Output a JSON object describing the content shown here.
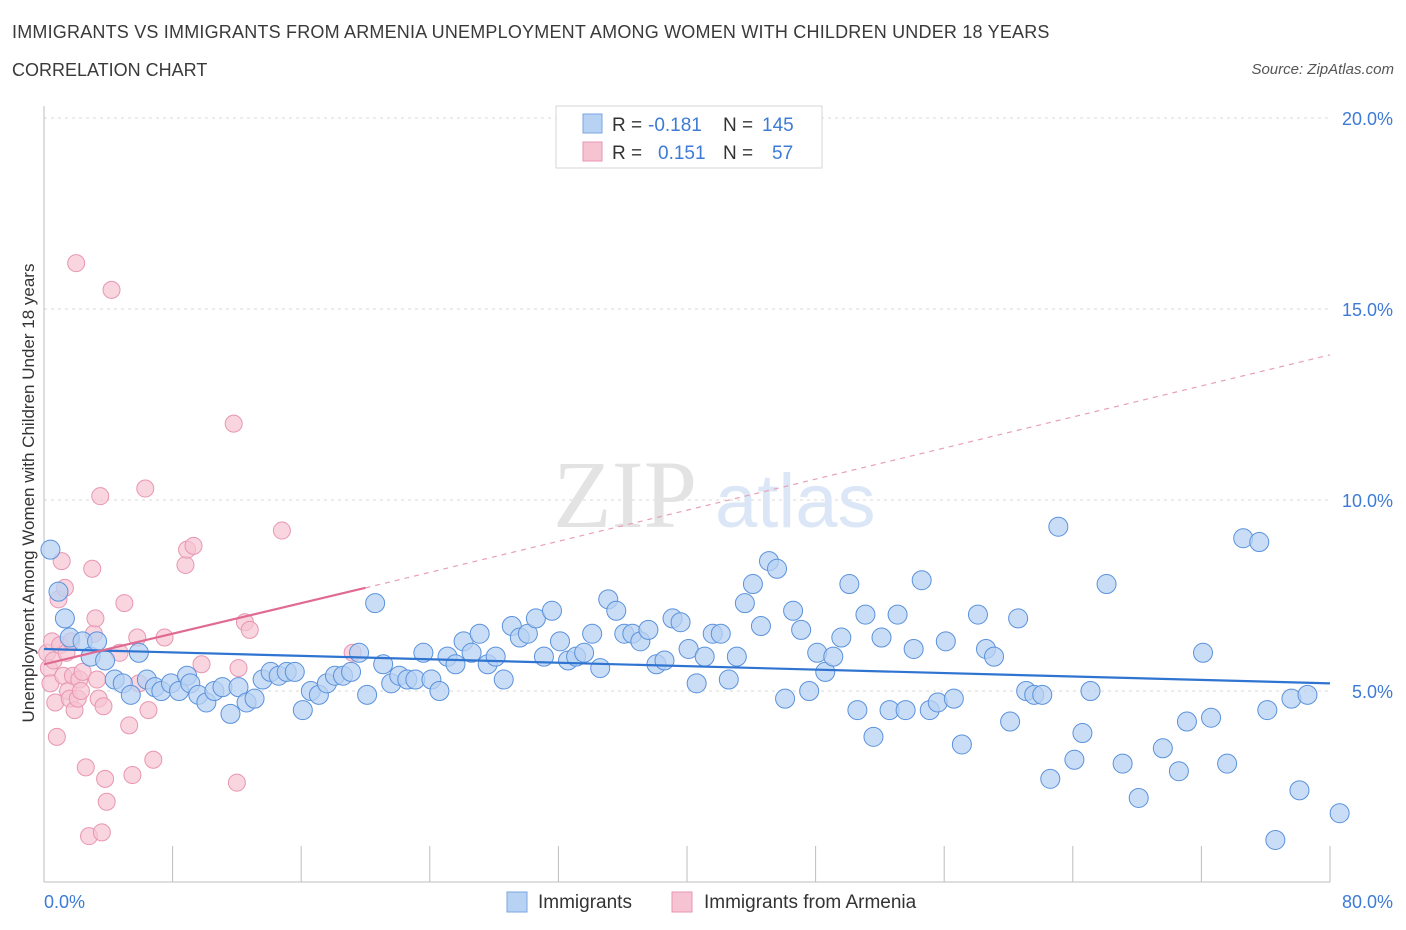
{
  "title": "IMMIGRANTS VS IMMIGRANTS FROM ARMENIA UNEMPLOYMENT AMONG WOMEN WITH CHILDREN UNDER 18 YEARS",
  "subtitle": "CORRELATION CHART",
  "source": "Source: ZipAtlas.com",
  "watermark": {
    "zip": "ZIP",
    "atlas": "atlas"
  },
  "colors": {
    "blue": "#4a86d8",
    "blue_fill": "#b8d2f3",
    "pink": "#e06a92",
    "pink_fill": "#f6c3d3",
    "axis_text": "#3d7bd6",
    "grid": "#d8d8d8"
  },
  "legend_box": {
    "rows": [
      {
        "r_label": "R =",
        "r_value": "-0.181",
        "n_label": "N =",
        "n_value": "145"
      },
      {
        "r_label": "R =",
        "r_value": "0.151",
        "n_label": "N =",
        "n_value": "57"
      }
    ]
  },
  "chart_data": {
    "type": "scatter",
    "ylabel": "Unemployment Among Women with Children Under 18 years",
    "xlim": [
      0,
      80
    ],
    "ylim": [
      0,
      20
    ],
    "x_tick_labels": [
      "0.0%",
      "80.0%"
    ],
    "y_ticks": [
      5,
      10,
      15,
      20
    ],
    "y_tick_labels": [
      "5.0%",
      "10.0%",
      "15.0%",
      "20.0%"
    ],
    "grid": true,
    "legend_placement": "bottom-center",
    "series": [
      {
        "name": "Immigrants",
        "color": "#4a86d8",
        "trend": {
          "x": [
            0,
            80
          ],
          "y": [
            6.1,
            5.2
          ]
        },
        "points": [
          [
            0.4,
            8.7
          ],
          [
            0.9,
            7.6
          ],
          [
            1.3,
            6.9
          ],
          [
            1.6,
            6.4
          ],
          [
            2.4,
            6.3
          ],
          [
            2.9,
            5.9
          ],
          [
            3.3,
            6.3
          ],
          [
            3.8,
            5.8
          ],
          [
            4.4,
            5.3
          ],
          [
            4.9,
            5.2
          ],
          [
            5.4,
            4.9
          ],
          [
            5.9,
            6.0
          ],
          [
            6.4,
            5.3
          ],
          [
            6.9,
            5.1
          ],
          [
            7.3,
            5.0
          ],
          [
            7.9,
            5.2
          ],
          [
            8.4,
            5.0
          ],
          [
            8.9,
            5.4
          ],
          [
            9.1,
            5.2
          ],
          [
            9.6,
            4.9
          ],
          [
            10.1,
            4.7
          ],
          [
            10.6,
            5.0
          ],
          [
            11.1,
            5.1
          ],
          [
            11.6,
            4.4
          ],
          [
            12.1,
            5.1
          ],
          [
            12.6,
            4.7
          ],
          [
            13.1,
            4.8
          ],
          [
            13.6,
            5.3
          ],
          [
            14.1,
            5.5
          ],
          [
            14.6,
            5.4
          ],
          [
            15.1,
            5.5
          ],
          [
            15.6,
            5.5
          ],
          [
            16.1,
            4.5
          ],
          [
            16.6,
            5.0
          ],
          [
            17.1,
            4.9
          ],
          [
            17.6,
            5.2
          ],
          [
            18.1,
            5.4
          ],
          [
            18.6,
            5.4
          ],
          [
            19.1,
            5.5
          ],
          [
            19.6,
            6.0
          ],
          [
            20.1,
            4.9
          ],
          [
            20.6,
            7.3
          ],
          [
            21.1,
            5.7
          ],
          [
            21.6,
            5.2
          ],
          [
            22.1,
            5.4
          ],
          [
            22.6,
            5.3
          ],
          [
            23.1,
            5.3
          ],
          [
            23.6,
            6.0
          ],
          [
            24.1,
            5.3
          ],
          [
            24.6,
            5.0
          ],
          [
            25.1,
            5.9
          ],
          [
            25.6,
            5.7
          ],
          [
            26.1,
            6.3
          ],
          [
            26.6,
            6.0
          ],
          [
            27.1,
            6.5
          ],
          [
            27.6,
            5.7
          ],
          [
            28.1,
            5.9
          ],
          [
            28.6,
            5.3
          ],
          [
            29.1,
            6.7
          ],
          [
            29.6,
            6.4
          ],
          [
            30.1,
            6.5
          ],
          [
            30.6,
            6.9
          ],
          [
            31.1,
            5.9
          ],
          [
            31.6,
            7.1
          ],
          [
            32.1,
            6.3
          ],
          [
            32.6,
            5.8
          ],
          [
            33.1,
            5.9
          ],
          [
            33.6,
            6.0
          ],
          [
            34.1,
            6.5
          ],
          [
            34.6,
            5.6
          ],
          [
            35.1,
            7.4
          ],
          [
            35.6,
            7.1
          ],
          [
            36.1,
            6.5
          ],
          [
            36.6,
            6.5
          ],
          [
            37.1,
            6.3
          ],
          [
            37.6,
            6.6
          ],
          [
            38.1,
            5.7
          ],
          [
            38.6,
            5.8
          ],
          [
            39.1,
            6.9
          ],
          [
            39.6,
            6.8
          ],
          [
            40.1,
            6.1
          ],
          [
            40.6,
            5.2
          ],
          [
            41.1,
            5.9
          ],
          [
            41.6,
            6.5
          ],
          [
            42.1,
            6.5
          ],
          [
            42.6,
            5.3
          ],
          [
            43.1,
            5.9
          ],
          [
            43.6,
            7.3
          ],
          [
            44.1,
            7.8
          ],
          [
            44.6,
            6.7
          ],
          [
            45.1,
            8.4
          ],
          [
            45.6,
            8.2
          ],
          [
            46.1,
            4.8
          ],
          [
            46.6,
            7.1
          ],
          [
            47.1,
            6.6
          ],
          [
            47.6,
            5.0
          ],
          [
            48.1,
            6.0
          ],
          [
            48.6,
            5.5
          ],
          [
            49.1,
            5.9
          ],
          [
            49.6,
            6.4
          ],
          [
            50.1,
            7.8
          ],
          [
            50.6,
            4.5
          ],
          [
            51.1,
            7.0
          ],
          [
            51.6,
            3.8
          ],
          [
            52.1,
            6.4
          ],
          [
            52.6,
            4.5
          ],
          [
            53.1,
            7.0
          ],
          [
            53.6,
            4.5
          ],
          [
            54.1,
            6.1
          ],
          [
            54.6,
            7.9
          ],
          [
            55.1,
            4.5
          ],
          [
            55.6,
            4.7
          ],
          [
            56.1,
            6.3
          ],
          [
            56.6,
            4.8
          ],
          [
            57.1,
            3.6
          ],
          [
            58.1,
            7.0
          ],
          [
            58.6,
            6.1
          ],
          [
            59.1,
            5.9
          ],
          [
            60.1,
            4.2
          ],
          [
            60.6,
            6.9
          ],
          [
            61.1,
            5.0
          ],
          [
            61.6,
            4.9
          ],
          [
            62.1,
            4.9
          ],
          [
            62.6,
            2.7
          ],
          [
            63.1,
            9.3
          ],
          [
            64.1,
            3.2
          ],
          [
            64.6,
            3.9
          ],
          [
            65.1,
            5.0
          ],
          [
            66.1,
            7.8
          ],
          [
            67.1,
            3.1
          ],
          [
            68.1,
            2.2
          ],
          [
            69.6,
            3.5
          ],
          [
            70.6,
            2.9
          ],
          [
            71.1,
            4.2
          ],
          [
            72.1,
            6.0
          ],
          [
            72.6,
            4.3
          ],
          [
            73.6,
            3.1
          ],
          [
            74.6,
            9.0
          ],
          [
            75.6,
            8.9
          ],
          [
            76.1,
            4.5
          ],
          [
            76.6,
            1.1
          ],
          [
            77.6,
            4.8
          ],
          [
            78.1,
            2.4
          ],
          [
            78.6,
            4.9
          ],
          [
            80.6,
            1.8
          ]
        ]
      },
      {
        "name": "Immigrants from Armenia",
        "color": "#e06a92",
        "trend": {
          "x": [
            0,
            20
          ],
          "y": [
            5.7,
            7.7
          ]
        },
        "trend_dashed": {
          "x": [
            20,
            80
          ],
          "y": [
            7.7,
            13.8
          ]
        },
        "points": [
          [
            0.2,
            6.0
          ],
          [
            0.3,
            5.6
          ],
          [
            0.4,
            5.2
          ],
          [
            0.5,
            6.3
          ],
          [
            0.6,
            5.8
          ],
          [
            0.7,
            4.7
          ],
          [
            0.8,
            3.8
          ],
          [
            0.9,
            7.4
          ],
          [
            1.0,
            6.2
          ],
          [
            1.1,
            8.4
          ],
          [
            1.2,
            5.4
          ],
          [
            1.3,
            7.7
          ],
          [
            1.4,
            6.0
          ],
          [
            1.5,
            5.0
          ],
          [
            1.6,
            4.8
          ],
          [
            1.7,
            6.3
          ],
          [
            1.8,
            5.4
          ],
          [
            1.9,
            4.5
          ],
          [
            2.0,
            16.2
          ],
          [
            2.1,
            4.8
          ],
          [
            2.2,
            5.3
          ],
          [
            2.3,
            5.0
          ],
          [
            2.4,
            5.5
          ],
          [
            2.6,
            3.0
          ],
          [
            2.8,
            1.2
          ],
          [
            3.0,
            8.2
          ],
          [
            3.1,
            6.5
          ],
          [
            3.2,
            6.9
          ],
          [
            3.3,
            5.3
          ],
          [
            3.4,
            4.8
          ],
          [
            3.5,
            10.1
          ],
          [
            3.6,
            1.3
          ],
          [
            3.7,
            4.6
          ],
          [
            3.8,
            2.7
          ],
          [
            3.9,
            2.1
          ],
          [
            4.2,
            15.5
          ],
          [
            4.7,
            6.0
          ],
          [
            5.0,
            7.3
          ],
          [
            5.3,
            4.1
          ],
          [
            5.5,
            2.8
          ],
          [
            5.8,
            6.4
          ],
          [
            5.9,
            5.2
          ],
          [
            6.3,
            10.3
          ],
          [
            6.5,
            4.5
          ],
          [
            6.8,
            3.2
          ],
          [
            7.5,
            6.4
          ],
          [
            8.8,
            8.3
          ],
          [
            8.9,
            8.7
          ],
          [
            9.3,
            8.8
          ],
          [
            9.8,
            5.7
          ],
          [
            11.8,
            12.0
          ],
          [
            12.0,
            2.6
          ],
          [
            12.1,
            5.6
          ],
          [
            12.5,
            6.8
          ],
          [
            12.8,
            6.6
          ],
          [
            14.8,
            9.2
          ],
          [
            19.2,
            6.0
          ]
        ]
      }
    ]
  }
}
